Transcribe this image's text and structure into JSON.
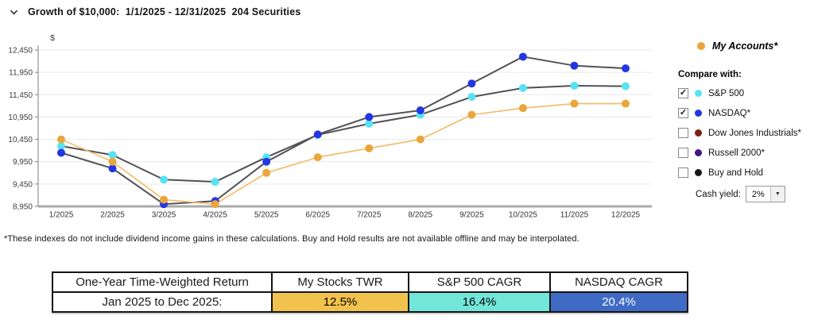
{
  "header": {
    "title": "Growth of $10,000:  1/1/2025 - 12/31/2025  204 Securities"
  },
  "icons": {
    "collapse": "chevron-down",
    "dropdown_arrow": "▼",
    "check_glyph": "✓"
  },
  "chart_data": {
    "type": "line",
    "title": "Growth of $10,000",
    "ylabel": "$",
    "xlabel": "",
    "x": [
      "1/2025",
      "2/2025",
      "3/2025",
      "4/2025",
      "5/2025",
      "6/2025",
      "7/2025",
      "8/2025",
      "9/2025",
      "10/2025",
      "11/2025",
      "12/2025"
    ],
    "series": [
      {
        "name": "My Accounts*",
        "marker_color": "#E9A63B",
        "line_color": "#F3BA66",
        "values": [
          10450,
          9950,
          9100,
          9000,
          9700,
          10050,
          10250,
          10450,
          11000,
          11150,
          11250,
          11250
        ]
      },
      {
        "name": "S&P 500",
        "marker_color": "#58E3F2",
        "line_color": "#515156",
        "values": [
          10300,
          10100,
          9550,
          9500,
          10050,
          10550,
          10800,
          11000,
          11400,
          11600,
          11650,
          11640
        ]
      },
      {
        "name": "NASDAQ*",
        "marker_color": "#2336E3",
        "line_color": "#515156",
        "values": [
          10150,
          9800,
          9000,
          9070,
          9950,
          10560,
          10950,
          11100,
          11700,
          12300,
          12100,
          12040
        ]
      }
    ],
    "ylim": [
      8950,
      12450
    ],
    "yticks": [
      8950,
      9450,
      9950,
      10450,
      10950,
      11450,
      11950,
      12450
    ],
    "grid": true,
    "legend_position": "right"
  },
  "legend": {
    "my_accounts_label": "My Accounts*",
    "my_accounts_color": "#E9A63B",
    "compare_with_label": "Compare with:",
    "items": [
      {
        "label": "S&P 500",
        "color": "#58E3F2",
        "checked": true
      },
      {
        "label": "NASDAQ*",
        "color": "#2336E3",
        "checked": true
      },
      {
        "label": "Dow Jones Industrials*",
        "color": "#7D1F16",
        "checked": false
      },
      {
        "label": "Russell 2000*",
        "color": "#43177E",
        "checked": false
      },
      {
        "label": "Buy and Hold",
        "color": "#141414",
        "checked": false
      }
    ],
    "cash_yield_label": "Cash yield:",
    "cash_yield_value": "2%"
  },
  "footnote": "*These indexes do not include dividend income gains in these calculations. Buy and Hold results are not available offline and may be interpolated.",
  "table": {
    "headers": [
      "One-Year Time-Weighted Return",
      "My Stocks TWR",
      "S&P 500 CAGR",
      "NASDAQ CAGR"
    ],
    "row_label": "Jan 2025 to Dec 2025:",
    "values": [
      {
        "text": "12.5%",
        "bg": "#F2C24E",
        "fg": "#000000"
      },
      {
        "text": "16.4%",
        "bg": "#72E6D8",
        "fg": "#000000"
      },
      {
        "text": "20.4%",
        "bg": "#3F6BC5",
        "fg": "#FFFFFF"
      }
    ]
  }
}
